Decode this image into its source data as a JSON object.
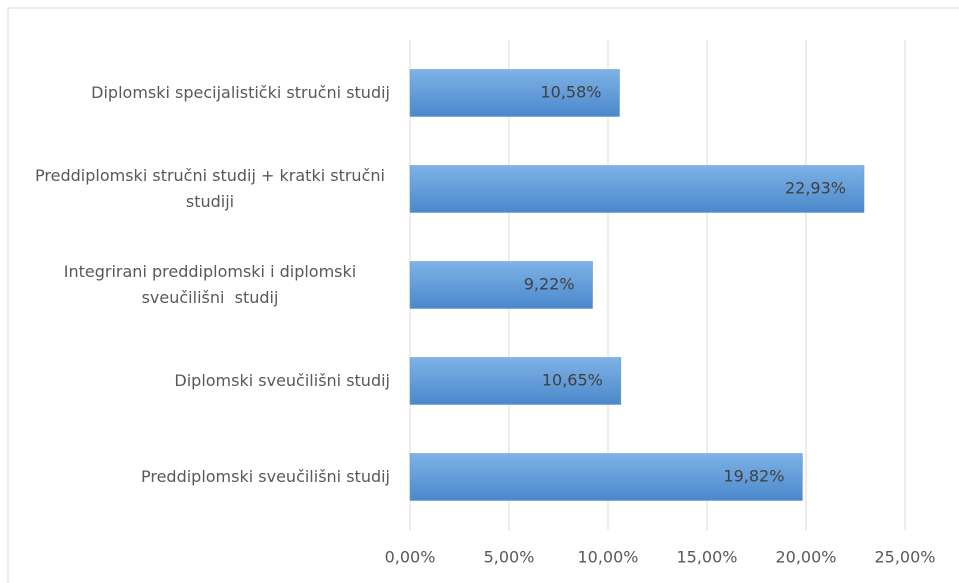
{
  "chart_data": {
    "type": "barh",
    "categories": [
      "Diplomski specijalistički stručni studij",
      "Preddiplomski stručni studij + kratki stručni studiji",
      "Integrirani preddiplomski i diplomski sveučilišni  studij",
      "Diplomski sveučilišni studij",
      "Preddiplomski sveučilišni studij"
    ],
    "values": [
      10.58,
      22.93,
      9.22,
      10.65,
      19.82
    ],
    "value_labels": [
      "10,58%",
      "22,93%",
      "9,22%",
      "10,65%",
      "19,82%"
    ],
    "color": "#5b9bd5",
    "xlim": [
      0,
      25
    ],
    "xticks": [
      {
        "value": 0,
        "label": "0,00%"
      },
      {
        "value": 5,
        "label": "5,00%"
      },
      {
        "value": 10,
        "label": "10,00%"
      },
      {
        "value": 15,
        "label": "15,00%"
      },
      {
        "value": 20,
        "label": "20,00%"
      },
      {
        "value": 25,
        "label": "25,00%"
      }
    ],
    "grid": true
  }
}
